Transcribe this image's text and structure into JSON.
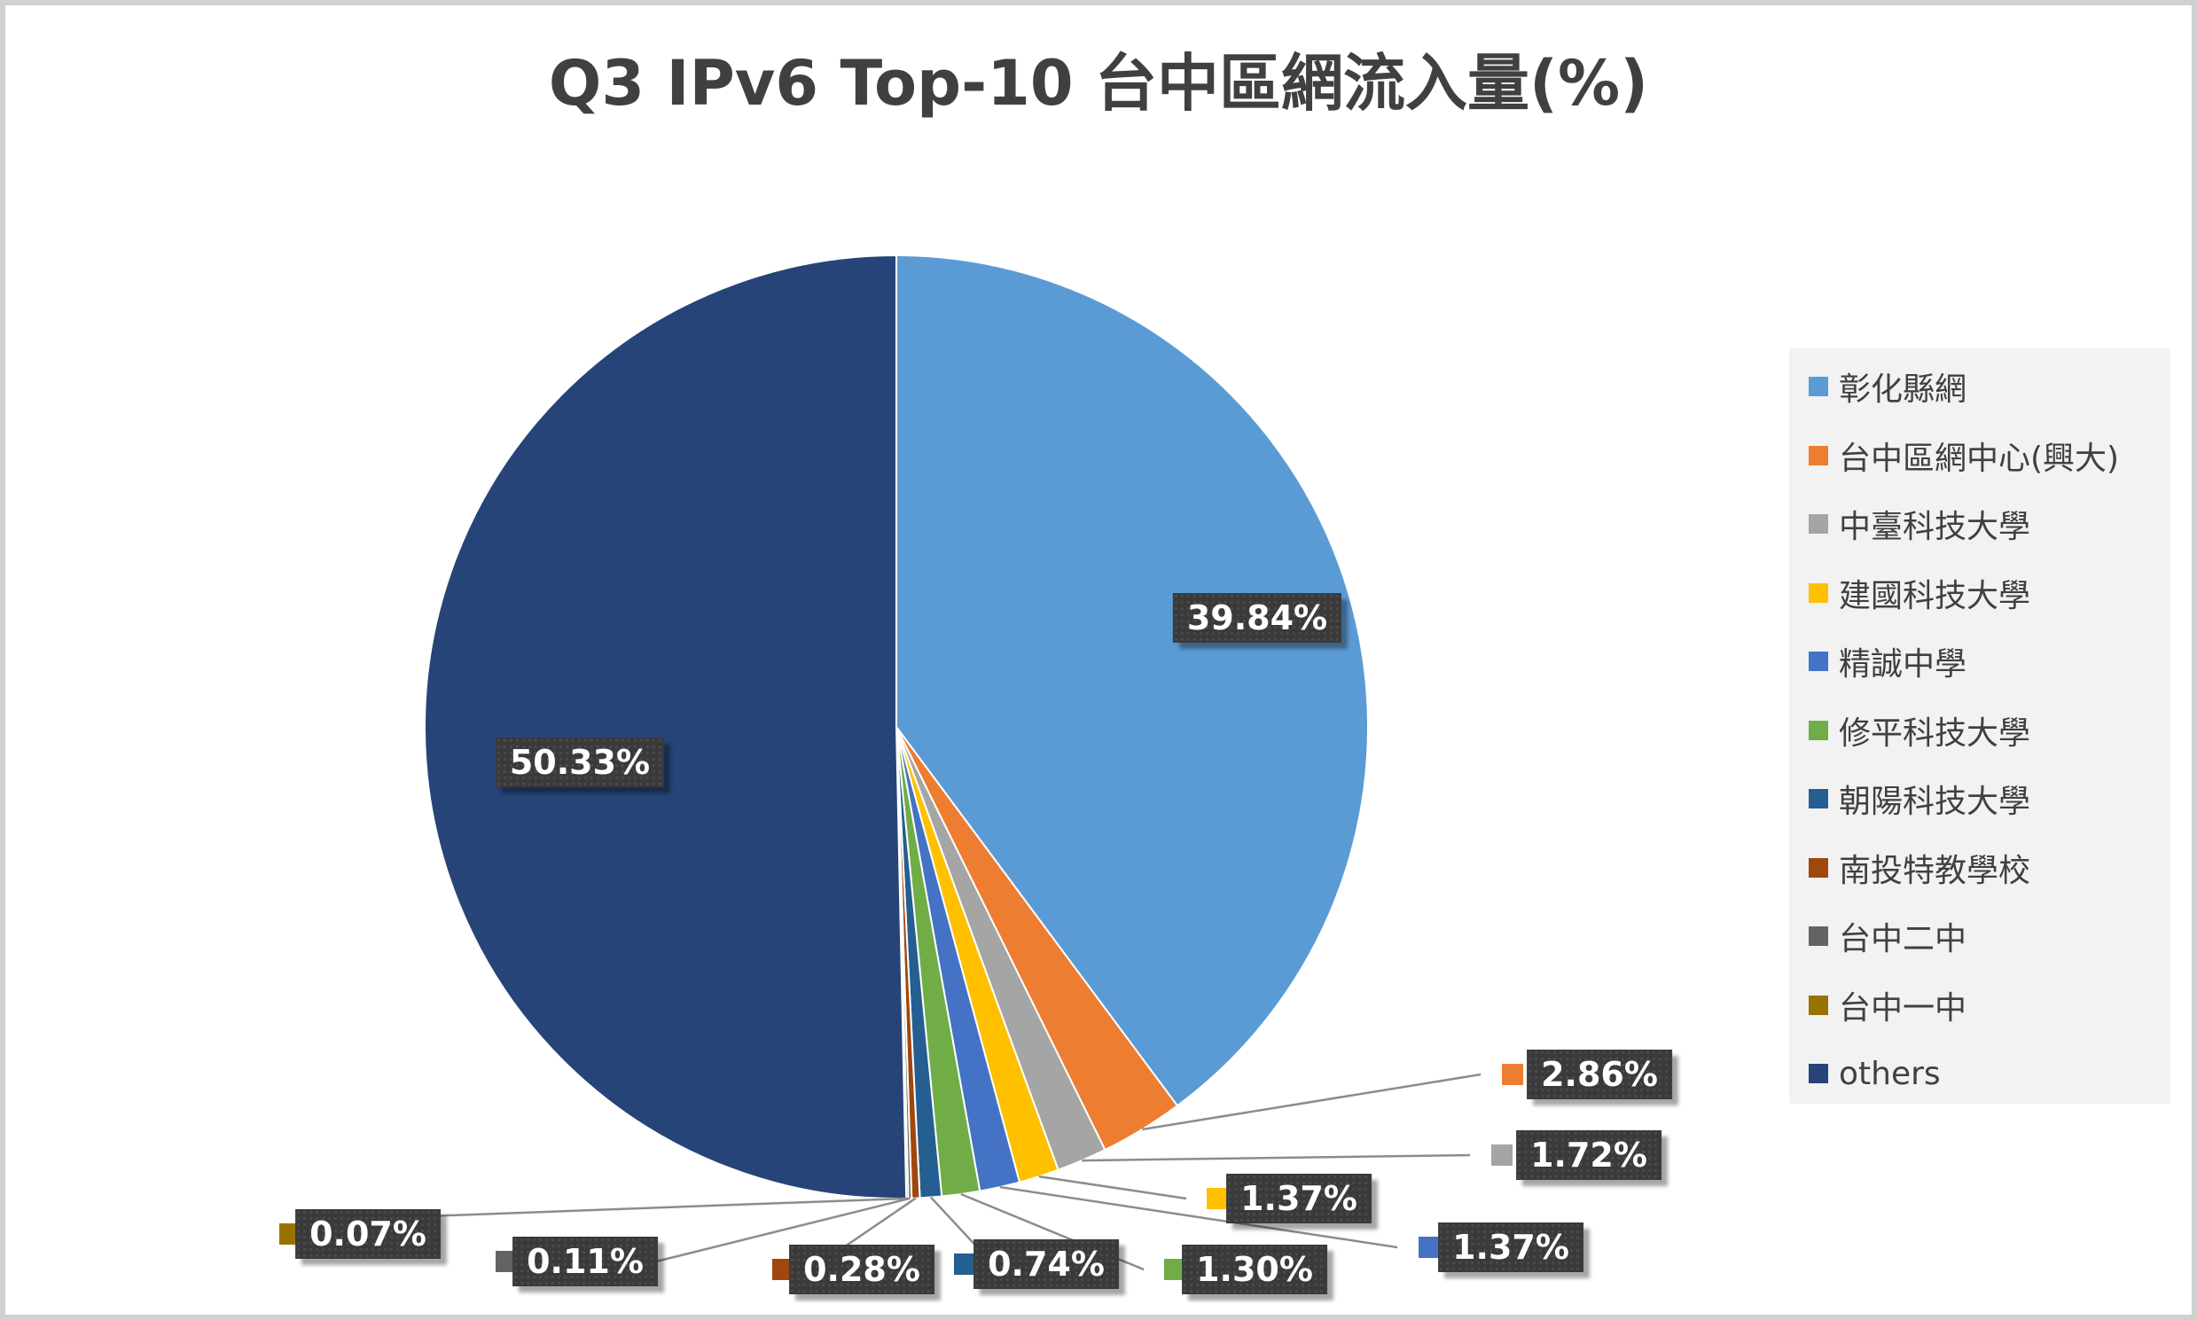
{
  "chart_data": {
    "type": "pie",
    "title": "Q3 IPv6 Top-10 台中區網流入量(%)",
    "categories": [
      "彰化縣網",
      "台中區網中心(興大)",
      "中臺科技大學",
      "建國科技大學",
      "精誠中學",
      "修平科技大學",
      "朝陽科技大學",
      "南投特教學校",
      "台中二中",
      "台中一中",
      "others"
    ],
    "values": [
      39.84,
      2.86,
      1.72,
      1.37,
      1.37,
      1.3,
      0.74,
      0.28,
      0.11,
      0.07,
      50.33
    ],
    "data_labels": [
      "39.84%",
      "2.86%",
      "1.72%",
      "1.37%",
      "1.37%",
      "1.30%",
      "0.74%",
      "0.28%",
      "0.11%",
      "0.07%",
      "50.33%"
    ],
    "colors": [
      "#5b9bd5",
      "#ed7d31",
      "#a5a5a5",
      "#ffc000",
      "#4472c4",
      "#70ad47",
      "#255e91",
      "#9e480e",
      "#636363",
      "#997300",
      "#264478"
    ],
    "legend_position": "right",
    "start_angle": "12 o'clock, clockwise"
  }
}
